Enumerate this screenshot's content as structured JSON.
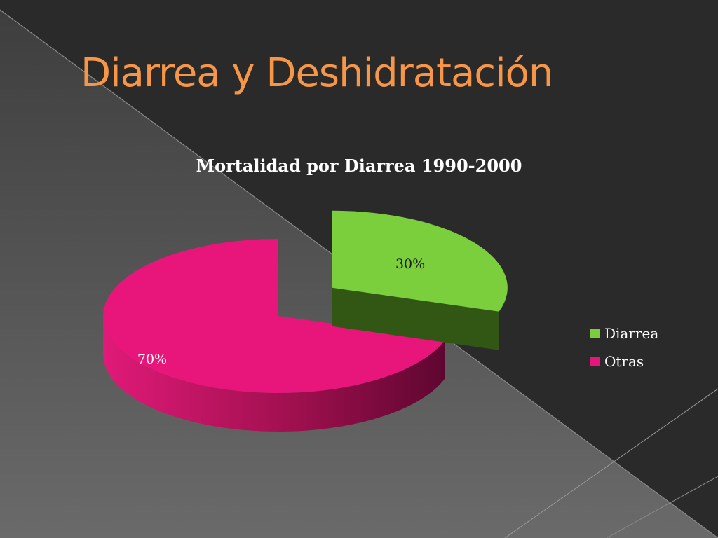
{
  "slide": {
    "title": "Diarrea y Deshidratación"
  },
  "chart_data": {
    "type": "pie",
    "title": "Mortalidad por Diarrea 1990-2000",
    "categories": [
      "Diarrea",
      "Otras"
    ],
    "values": [
      30,
      70
    ],
    "data_labels": [
      "30%",
      "70%"
    ],
    "colors": {
      "Diarrea": "#7ccf3c",
      "Otras": "#e8157a"
    },
    "exploded": true,
    "three_d": true,
    "legend_position": "right"
  }
}
